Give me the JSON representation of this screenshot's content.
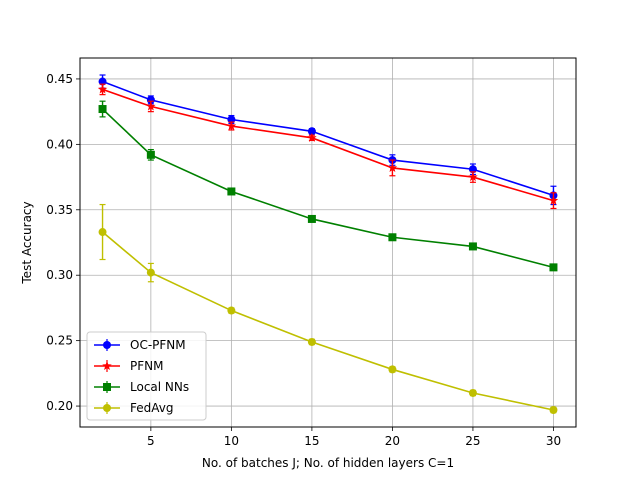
{
  "chart_data": {
    "type": "line",
    "xlabel": "No. of batches J; No. of hidden layers C=1",
    "ylabel": "Test Accuracy",
    "xlim": [
      0.6,
      31.4
    ],
    "ylim": [
      0.184,
      0.466
    ],
    "x_ticks": [
      5,
      10,
      15,
      20,
      25,
      30
    ],
    "y_ticks": [
      0.2,
      0.25,
      0.3,
      0.35,
      0.4,
      0.45
    ],
    "x_tick_labels": [
      "5",
      "10",
      "15",
      "20",
      "25",
      "30"
    ],
    "y_tick_labels": [
      "0.20",
      "0.25",
      "0.30",
      "0.35",
      "0.40",
      "0.45"
    ],
    "grid": true,
    "legend_position": "lower-left",
    "x": [
      2,
      5,
      10,
      15,
      20,
      25,
      30
    ],
    "series": [
      {
        "name": "OC-PFNM",
        "color": "#0000ff",
        "marker": "circle",
        "values": [
          0.448,
          0.434,
          0.419,
          0.41,
          0.388,
          0.381,
          0.361
        ],
        "errors": [
          0.005,
          0.003,
          0.003,
          0.002,
          0.004,
          0.004,
          0.007
        ]
      },
      {
        "name": "PFNM",
        "color": "#ff0000",
        "marker": "star",
        "values": [
          0.442,
          0.429,
          0.414,
          0.405,
          0.382,
          0.375,
          0.357
        ],
        "errors": [
          0.004,
          0.004,
          0.003,
          0.002,
          0.006,
          0.004,
          0.006
        ]
      },
      {
        "name": "Local NNs",
        "color": "#008000",
        "marker": "square",
        "values": [
          0.427,
          0.392,
          0.364,
          0.343,
          0.329,
          0.322,
          0.306
        ],
        "errors": [
          0.006,
          0.004,
          0.002,
          0.002,
          0.002,
          0.002,
          0.002
        ]
      },
      {
        "name": "FedAvg",
        "color": "#bfbf00",
        "marker": "circle",
        "values": [
          0.333,
          0.302,
          0.273,
          0.249,
          0.228,
          0.21,
          0.197
        ],
        "errors": [
          0.021,
          0.007,
          0.002,
          0.002,
          0.002,
          0.002,
          0.002
        ]
      }
    ]
  }
}
